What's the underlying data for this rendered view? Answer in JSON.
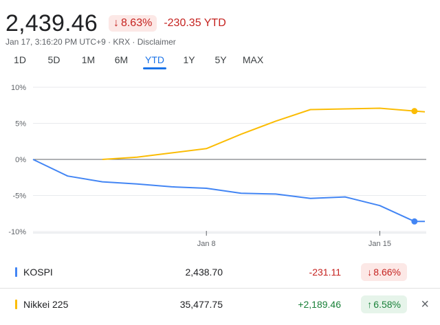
{
  "header": {
    "price": "2,439.46",
    "pct_change": "8.63%",
    "pct_arrow": "↓",
    "ytd_change": "-230.35 YTD",
    "meta_prefix": "Jan 17, 3:16:20 PM UTC+9 · KRX · ",
    "disclaimer": "Disclaimer"
  },
  "ranges": [
    {
      "label": "1D",
      "active": false
    },
    {
      "label": "5D",
      "active": false
    },
    {
      "label": "1M",
      "active": false
    },
    {
      "label": "6M",
      "active": false
    },
    {
      "label": "YTD",
      "active": true
    },
    {
      "label": "1Y",
      "active": false
    },
    {
      "label": "5Y",
      "active": false
    },
    {
      "label": "MAX",
      "active": false
    }
  ],
  "chart_data": {
    "type": "line",
    "ylim": [
      -10,
      10
    ],
    "yticks": [
      "10%",
      "5%",
      "0%",
      "-5%",
      "-10%"
    ],
    "ytick_values": [
      10,
      5,
      0,
      -5,
      -10
    ],
    "xticks": [
      {
        "label": "Jan 8",
        "pos": 5
      },
      {
        "label": "Jan 15",
        "pos": 10
      }
    ],
    "xlim": [
      0,
      11.3
    ],
    "series": [
      {
        "name": "KOSPI",
        "color": "#4285f4",
        "points": [
          [
            0,
            0
          ],
          [
            1,
            -2.3
          ],
          [
            2,
            -3.1
          ],
          [
            3,
            -3.4
          ],
          [
            4,
            -3.8
          ],
          [
            5,
            -4.0
          ],
          [
            6,
            -4.7
          ],
          [
            7,
            -4.8
          ],
          [
            8,
            -5.4
          ],
          [
            9,
            -5.2
          ],
          [
            10,
            -6.4
          ],
          [
            11,
            -8.6
          ],
          [
            11.3,
            -8.6
          ]
        ]
      },
      {
        "name": "Nikkei 225",
        "color": "#fbbc04",
        "points": [
          [
            2,
            0
          ],
          [
            3,
            0.3
          ],
          [
            4,
            0.9
          ],
          [
            5,
            1.5
          ],
          [
            6,
            3.5
          ],
          [
            7,
            5.3
          ],
          [
            8,
            6.9
          ],
          [
            9,
            7.0
          ],
          [
            10,
            7.1
          ],
          [
            11,
            6.7
          ],
          [
            11.3,
            6.6
          ]
        ]
      }
    ]
  },
  "rows": [
    {
      "name": "KOSPI",
      "color": "#4285f4",
      "value": "2,438.70",
      "change": "-231.11",
      "dir": "neg",
      "arrow": "↓",
      "pct": "8.66%"
    },
    {
      "name": "Nikkei 225",
      "color": "#fbbc04",
      "value": "35,477.75",
      "change": "+2,189.46",
      "dir": "pos",
      "arrow": "↑",
      "pct": "6.58%"
    }
  ],
  "close_icon": "×"
}
